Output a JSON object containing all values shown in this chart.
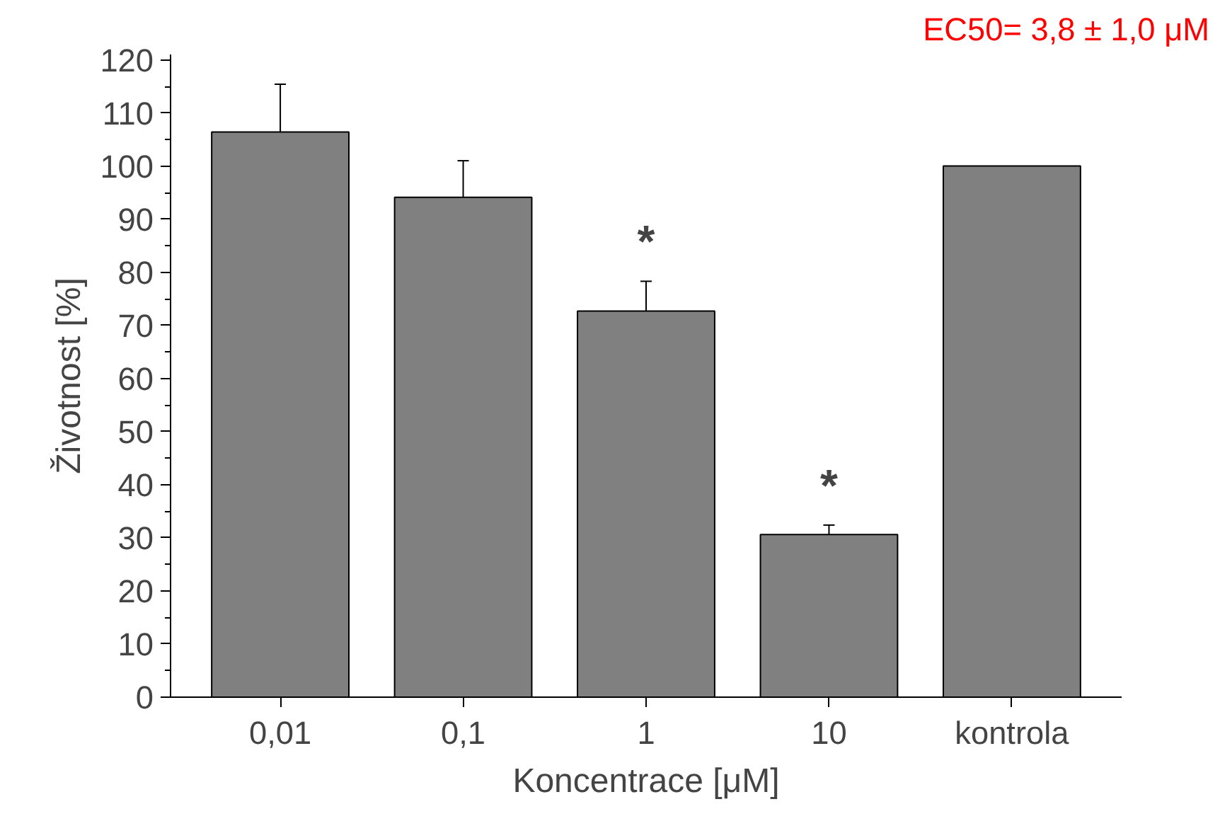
{
  "chart_data": {
    "type": "bar",
    "ylabel": "Životnost [%]",
    "xlabel": "Koncentrace [μM]",
    "categories": [
      "0,01",
      "0,1",
      "1",
      "10",
      "kontrola"
    ],
    "values": [
      106.4,
      94.1,
      72.7,
      30.6,
      100
    ],
    "errors": [
      9,
      6.9,
      5.6,
      1.8,
      null
    ],
    "color": "#808080",
    "ylim": [
      0,
      121
    ],
    "yticks": [
      0,
      10,
      20,
      30,
      40,
      50,
      60,
      70,
      80,
      90,
      100,
      110,
      120
    ],
    "grid": false,
    "annotations": [
      "EC50= 3,8 ± 1,0 μM",
      {
        "text": "*",
        "x": "1",
        "y": 78.3
      },
      {
        "text": "*",
        "x": "10",
        "y": 32.4
      }
    ]
  }
}
